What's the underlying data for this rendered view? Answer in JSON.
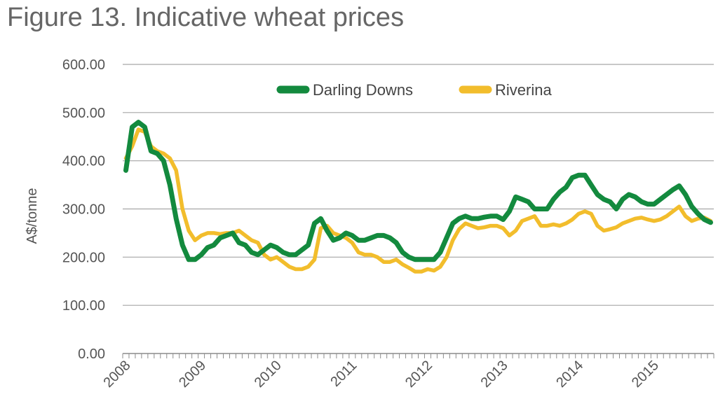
{
  "chart_data": {
    "type": "line",
    "title": "Figure 13. Indicative wheat prices",
    "xlabel": "",
    "ylabel": "A$/tonne",
    "ylim": [
      0,
      600
    ],
    "yticks": [
      "0.00",
      "100.00",
      "200.00",
      "300.00",
      "400.00",
      "500.00",
      "600.00"
    ],
    "xticks": [
      "2008",
      "2009",
      "2010",
      "2011",
      "2012",
      "2013",
      "2014",
      "2015"
    ],
    "grid": true,
    "legend_position": "top",
    "x_start": "2008-01",
    "x_frequency": "monthly",
    "series": [
      {
        "name": "Darling Downs",
        "color": "#138a3e",
        "values": [
          380,
          470,
          480,
          470,
          420,
          415,
          400,
          350,
          280,
          225,
          195,
          195,
          205,
          220,
          225,
          240,
          245,
          250,
          230,
          225,
          210,
          205,
          215,
          225,
          220,
          210,
          205,
          205,
          215,
          225,
          270,
          280,
          255,
          235,
          240,
          250,
          245,
          235,
          235,
          240,
          245,
          245,
          240,
          230,
          210,
          200,
          195,
          195,
          195,
          195,
          210,
          240,
          270,
          280,
          285,
          280,
          280,
          283,
          285,
          285,
          278,
          295,
          325,
          320,
          315,
          300,
          300,
          300,
          320,
          335,
          345,
          365,
          370,
          370,
          350,
          330,
          320,
          315,
          300,
          320,
          330,
          325,
          315,
          310,
          310,
          320,
          330,
          340,
          348,
          330,
          305,
          290,
          278,
          272
        ]
      },
      {
        "name": "Riverina",
        "color": "#f2bd2c",
        "values": [
          405,
          430,
          465,
          460,
          430,
          420,
          415,
          405,
          380,
          300,
          255,
          235,
          245,
          250,
          250,
          248,
          250,
          250,
          255,
          245,
          235,
          230,
          205,
          195,
          200,
          190,
          180,
          175,
          175,
          180,
          195,
          260,
          265,
          250,
          245,
          240,
          230,
          210,
          205,
          205,
          200,
          190,
          190,
          195,
          185,
          178,
          170,
          170,
          175,
          172,
          180,
          200,
          235,
          258,
          270,
          265,
          260,
          262,
          265,
          265,
          260,
          245,
          255,
          275,
          280,
          285,
          265,
          265,
          268,
          265,
          270,
          278,
          290,
          295,
          290,
          265,
          255,
          258,
          262,
          270,
          275,
          280,
          282,
          278,
          275,
          278,
          285,
          295,
          305,
          285,
          275,
          280,
          282,
          275
        ]
      }
    ]
  }
}
